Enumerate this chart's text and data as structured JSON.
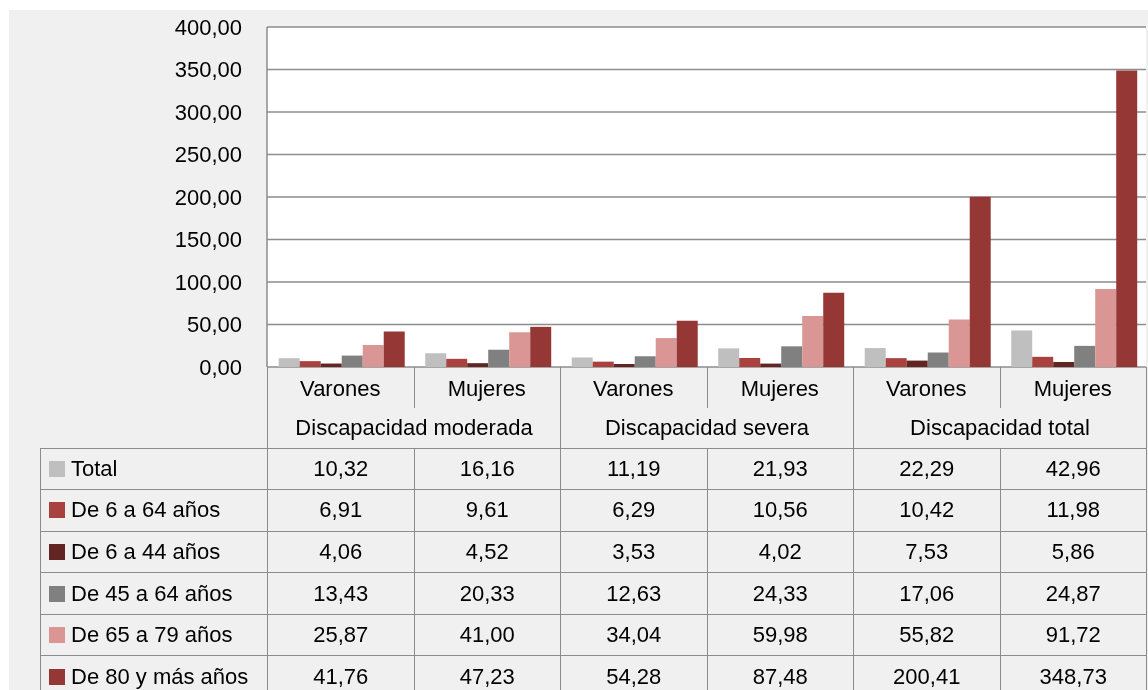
{
  "chart_data": {
    "type": "bar",
    "categories": [
      "Varones",
      "Mujeres",
      "Varones",
      "Mujeres",
      "Varones",
      "Mujeres"
    ],
    "annotations": [
      "Discapacidad moderada",
      "Discapacidad severa",
      "Discapacidad total"
    ],
    "series": [
      {
        "name": "Total",
        "color": "#bfbfbf",
        "values": [
          10.32,
          16.16,
          11.19,
          21.93,
          22.29,
          42.96
        ],
        "value_labels": [
          "10,32",
          "16,16",
          "11,19",
          "21,93",
          "22,29",
          "42,96"
        ]
      },
      {
        "name": "De 6 a 64 años",
        "color": "#a9423f",
        "values": [
          6.91,
          9.61,
          6.29,
          10.56,
          10.42,
          11.98
        ],
        "value_labels": [
          "6,91",
          "9,61",
          "6,29",
          "10,56",
          "10,42",
          "11,98"
        ]
      },
      {
        "name": "De 6 a 44 años",
        "color": "#632523",
        "values": [
          4.06,
          4.52,
          3.53,
          4.02,
          7.53,
          5.86
        ],
        "value_labels": [
          "4,06",
          "4,52",
          "3,53",
          "4,02",
          "7,53",
          "5,86"
        ]
      },
      {
        "name": "De 45 a 64 años",
        "color": "#808080",
        "values": [
          13.43,
          20.33,
          12.63,
          24.33,
          17.06,
          24.87
        ],
        "value_labels": [
          "13,43",
          "20,33",
          "12,63",
          "24,33",
          "17,06",
          "24,87"
        ]
      },
      {
        "name": "De 65 a 79 años",
        "color": "#d99694",
        "values": [
          25.87,
          41.0,
          34.04,
          59.98,
          55.82,
          91.72
        ],
        "value_labels": [
          "25,87",
          "41,00",
          "34,04",
          "59,98",
          "55,82",
          "91,72"
        ]
      },
      {
        "name": "De 80 y más años",
        "color": "#953735",
        "values": [
          41.76,
          47.23,
          54.28,
          87.48,
          200.41,
          348.73
        ],
        "value_labels": [
          "41,76",
          "47,23",
          "54,28",
          "87,48",
          "200,41",
          "348,73"
        ]
      }
    ],
    "ylim": [
      0,
      400
    ],
    "yticks": [
      {
        "value": 0,
        "label": "0,00"
      },
      {
        "value": 50,
        "label": "50,00"
      },
      {
        "value": 100,
        "label": "100,00"
      },
      {
        "value": 150,
        "label": "150,00"
      },
      {
        "value": 200,
        "label": "200,00"
      },
      {
        "value": 250,
        "label": "250,00"
      },
      {
        "value": 300,
        "label": "300,00"
      },
      {
        "value": 350,
        "label": "350,00"
      },
      {
        "value": 400,
        "label": "400,00"
      }
    ],
    "grid": "y",
    "legend": "bottom"
  }
}
